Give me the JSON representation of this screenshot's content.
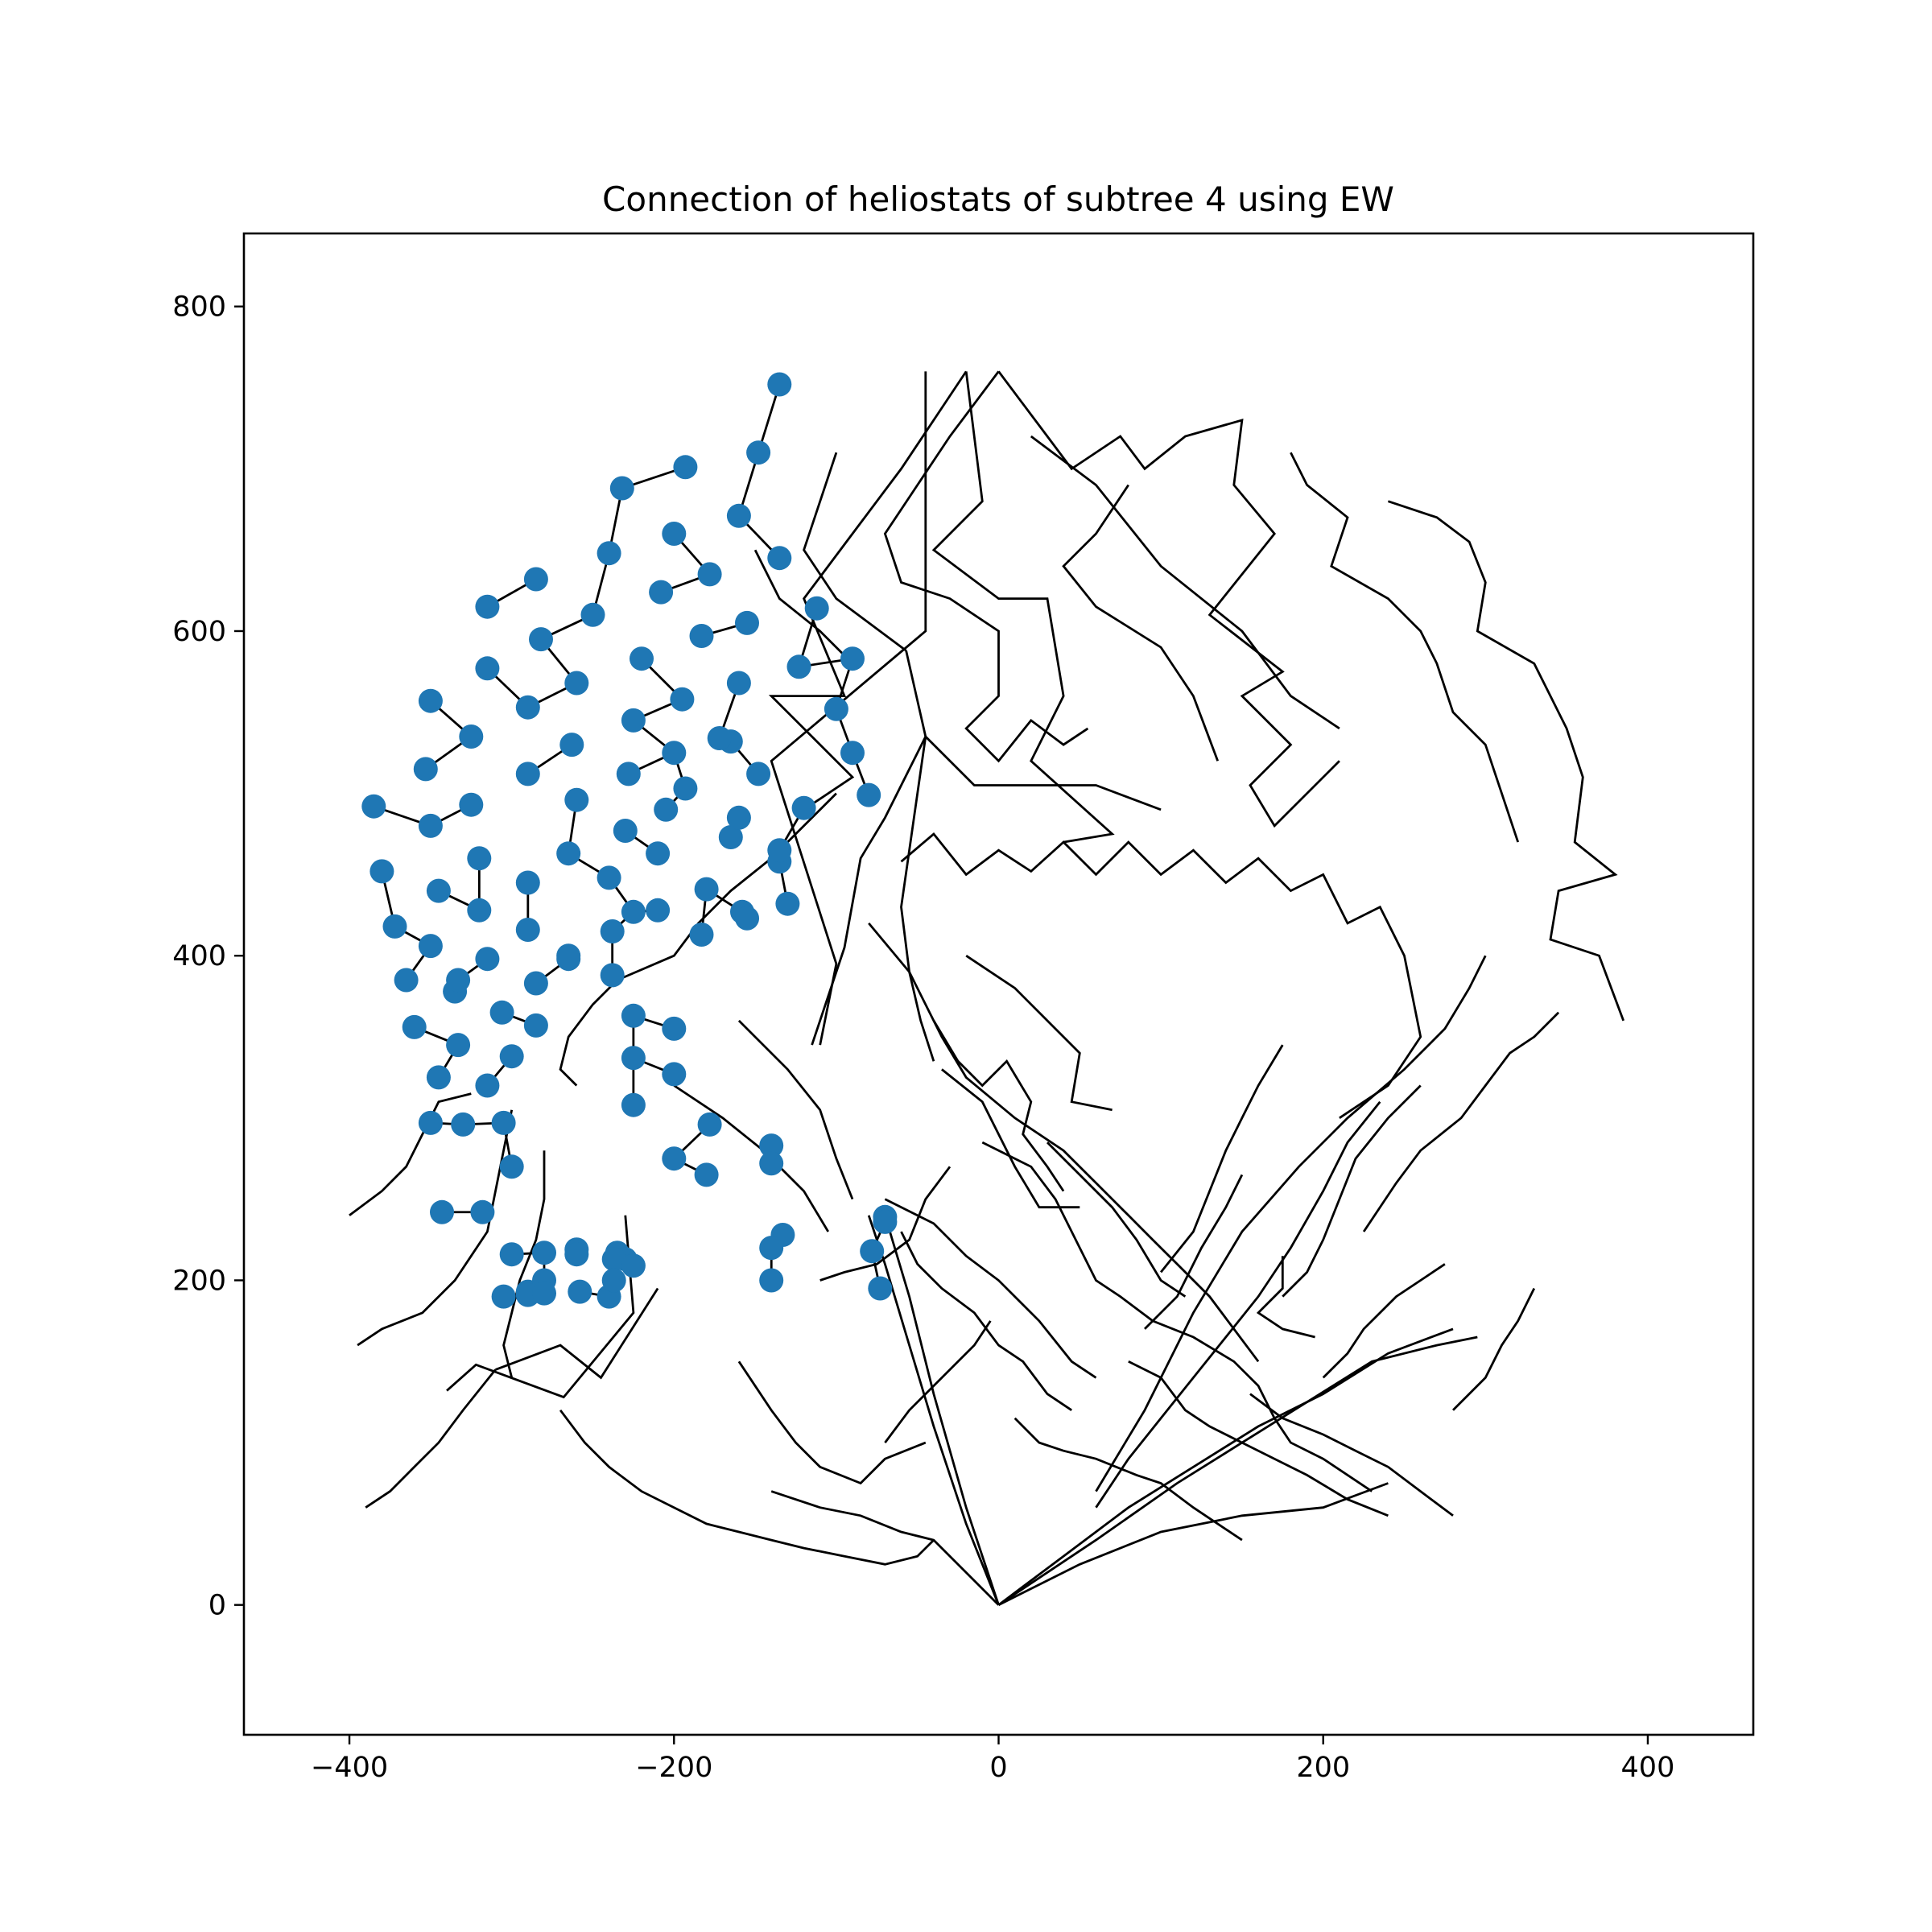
{
  "chart_data": {
    "type": "scatter",
    "title": "Connection of heliostats of subtree 4 using EW",
    "xlabel": "",
    "ylabel": "",
    "xlim": [
      -465,
      465
    ],
    "ylim": [
      -80,
      845
    ],
    "xticks": [
      -400,
      -200,
      0,
      200,
      400
    ],
    "yticks": [
      0,
      200,
      400,
      600,
      800
    ],
    "xtick_labels": [
      "−400",
      "−200",
      "0",
      "200",
      "400"
    ],
    "ytick_labels": [
      "0",
      "200",
      "400",
      "600",
      "800"
    ],
    "grid": false,
    "colors": {
      "points": "#1f77b4",
      "edges": "#000000",
      "background": "#ffffff"
    },
    "series": [
      {
        "kind": "points",
        "x": [
          -135,
          -148,
          -193,
          -232,
          -200,
          -160,
          -135,
          -240,
          -208,
          -178,
          -112,
          -155,
          -183,
          -220,
          -250,
          -282,
          -315,
          -315,
          -290,
          -123,
          -195,
          -225,
          -260,
          -90,
          -100,
          -165,
          -325,
          -350,
          -353,
          -285,
          -200,
          -160,
          -228,
          -263,
          -148,
          -120,
          -80,
          -90,
          -193,
          -325,
          -290,
          -172,
          -205,
          -135,
          -230,
          -260,
          -165,
          -385,
          -350,
          -265,
          -290,
          -320,
          -130,
          -158,
          -345,
          -380,
          -240,
          -210,
          -180,
          -225,
          -320,
          -290,
          -265,
          -135,
          -160,
          -183,
          -372,
          -350,
          -335,
          -315,
          -210,
          -238,
          -365,
          -285,
          -333,
          -238,
          -265,
          -285,
          -360,
          -306,
          -200,
          -225,
          -300,
          -225,
          -315,
          -345,
          -200,
          -330,
          -225,
          -178,
          -155,
          -300,
          -200,
          -350,
          -140,
          -180,
          -140,
          -343,
          -318,
          -235,
          -230,
          -133,
          -260,
          -300,
          -305,
          -280,
          -290,
          -237,
          -240,
          -70,
          -140,
          -290,
          -280,
          -225,
          -140,
          -78,
          -258,
          -70,
          -73,
          -260,
          -237,
          -280,
          -333,
          -305
        ],
        "y": [
          752,
          710,
          701,
          688,
          660,
          671,
          645,
          648,
          624,
          635,
          614,
          605,
          597,
          583,
          610,
          595,
          615,
          577,
          553,
          578,
          558,
          545,
          568,
          583,
          552,
          532,
          535,
          557,
          515,
          632,
          525,
          568,
          512,
          530,
          512,
          491,
          499,
          525,
          503,
          493,
          512,
          534,
          490,
          458,
          477,
          496,
          473,
          492,
          480,
          463,
          445,
          460,
          432,
          427,
          440,
          452,
          448,
          463,
          441,
          427,
          428,
          416,
          398,
          465,
          485,
          413,
          418,
          406,
          378,
          398,
          428,
          415,
          385,
          383,
          345,
          388,
          400,
          357,
          356,
          365,
          355,
          363,
          338,
          337,
          320,
          325,
          327,
          296,
          308,
          296,
          423,
          270,
          275,
          297,
          283,
          265,
          272,
          242,
          242,
          217,
          213,
          228,
          219,
          216,
          190,
          217,
          193,
          213,
          190,
          239,
          220,
          191,
          200,
          209,
          200,
          218,
          193,
          236,
          195,
          216,
          200,
          192,
          385,
          297
        ],
        "marker_label": ""
      }
    ]
  }
}
